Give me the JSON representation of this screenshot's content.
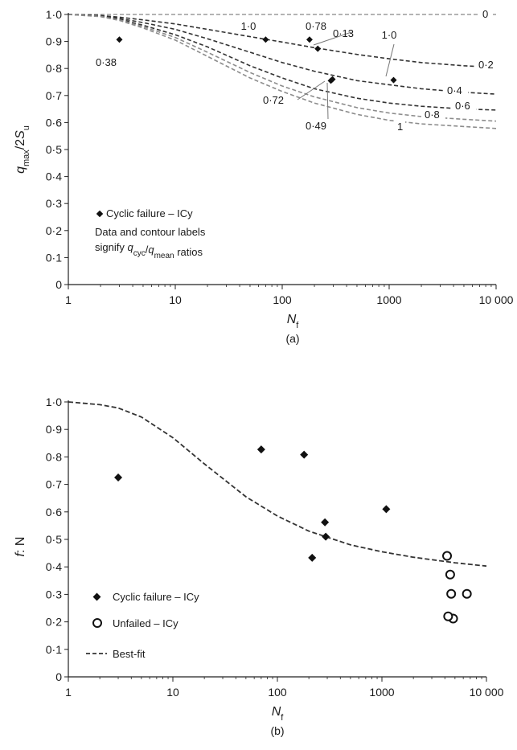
{
  "chart_data": [
    {
      "type": "line",
      "panel_label": "(a)",
      "ylabel": "q_max/2S_u",
      "xlabel": "N_f",
      "x_scale": "log",
      "xlim": [
        1,
        10000
      ],
      "ylim": [
        0,
        1.0
      ],
      "x_ticks": [
        1,
        10,
        100,
        1000,
        10000
      ],
      "x_tick_labels": [
        "1",
        "10",
        "100",
        "1000",
        "10 000"
      ],
      "y_ticks": [
        0,
        0.1,
        0.2,
        0.3,
        0.4,
        0.5,
        0.6,
        0.7,
        0.8,
        0.9,
        1.0
      ],
      "y_tick_labels": [
        "0",
        "0·1",
        "0·2",
        "0·3",
        "0·4",
        "0·5",
        "0·6",
        "0·7",
        "0·8",
        "0·9",
        "1·0"
      ],
      "grid": false,
      "contours": [
        {
          "label": "0",
          "color": "#9a9a9a",
          "x": [
            1,
            2,
            3,
            5,
            10,
            20,
            50,
            100,
            200,
            500,
            1000,
            2000,
            5000,
            10000
          ],
          "y": [
            1.0,
            1.0,
            1.0,
            1.0,
            1.0,
            1.0,
            1.0,
            1.0,
            1.0,
            1.0,
            1.0,
            1.0,
            1.0,
            1.0
          ]
        },
        {
          "label": "0·2",
          "color": "#333333",
          "x": [
            1,
            2,
            3,
            5,
            10,
            20,
            50,
            100,
            200,
            500,
            1000,
            2000,
            5000,
            10000
          ],
          "y": [
            1.0,
            0.996,
            0.99,
            0.98,
            0.965,
            0.945,
            0.918,
            0.898,
            0.877,
            0.852,
            0.836,
            0.822,
            0.81,
            0.804
          ]
        },
        {
          "label": "0·4",
          "color": "#333333",
          "x": [
            1,
            2,
            3,
            5,
            10,
            20,
            50,
            100,
            200,
            500,
            1000,
            2000,
            5000,
            10000
          ],
          "y": [
            1.0,
            0.995,
            0.985,
            0.97,
            0.945,
            0.91,
            0.86,
            0.822,
            0.79,
            0.755,
            0.74,
            0.725,
            0.712,
            0.705
          ]
        },
        {
          "label": "0·6",
          "color": "#333333",
          "x": [
            1,
            2,
            3,
            5,
            10,
            20,
            50,
            100,
            200,
            500,
            1000,
            2000,
            5000,
            10000
          ],
          "y": [
            1.0,
            0.994,
            0.982,
            0.96,
            0.925,
            0.88,
            0.81,
            0.765,
            0.725,
            0.69,
            0.672,
            0.66,
            0.65,
            0.646
          ]
        },
        {
          "label": "0·8",
          "color": "#8c8c8c",
          "x": [
            1,
            2,
            3,
            5,
            10,
            20,
            50,
            100,
            200,
            500,
            1000,
            2000,
            5000,
            10000
          ],
          "y": [
            1.0,
            0.993,
            0.98,
            0.955,
            0.915,
            0.86,
            0.785,
            0.735,
            0.695,
            0.655,
            0.635,
            0.622,
            0.612,
            0.605
          ]
        },
        {
          "label": "1",
          "color": "#8c8c8c",
          "x": [
            1,
            2,
            3,
            5,
            10,
            20,
            50,
            100,
            200,
            500,
            1000,
            2000,
            5000,
            10000
          ],
          "y": [
            1.0,
            0.992,
            0.978,
            0.95,
            0.905,
            0.845,
            0.765,
            0.715,
            0.672,
            0.63,
            0.608,
            0.595,
            0.585,
            0.578
          ]
        }
      ],
      "points": [
        {
          "x": 3,
          "y": 0.907,
          "label": "0·38"
        },
        {
          "x": 70,
          "y": 0.907,
          "label": "1·0"
        },
        {
          "x": 180,
          "y": 0.907,
          "label": "0·78"
        },
        {
          "x": 215,
          "y": 0.873,
          "label": "0·13"
        },
        {
          "x": 285,
          "y": 0.755,
          "label": "0·72"
        },
        {
          "x": 295,
          "y": 0.76,
          "label": "0·49"
        },
        {
          "x": 1100,
          "y": 0.757,
          "label": "1·0"
        }
      ],
      "legend": {
        "position": "bottom-left",
        "marker_label": "Cyclic failure – ICy",
        "note_line1": "Data and contour labels",
        "note_line2_prefix": "signify ",
        "note_q1": "q",
        "note_q1_sub": "cyc",
        "note_slash": "/",
        "note_q2": "q",
        "note_q2_sub": "mean",
        "note_suffix": " ratios"
      }
    },
    {
      "type": "scatter",
      "panel_label": "(b)",
      "ylabel": "f: N",
      "xlabel": "N_f",
      "x_scale": "log",
      "xlim": [
        1,
        10000
      ],
      "ylim": [
        0,
        1.0
      ],
      "x_ticks": [
        1,
        10,
        100,
        1000,
        10000
      ],
      "x_tick_labels": [
        "1",
        "10",
        "100",
        "1000",
        "10 000"
      ],
      "y_ticks": [
        0,
        0.1,
        0.2,
        0.3,
        0.4,
        0.5,
        0.6,
        0.7,
        0.8,
        0.9,
        1.0
      ],
      "y_tick_labels": [
        "0",
        "0·1",
        "0·2",
        "0·3",
        "0·4",
        "0·5",
        "0·6",
        "0·7",
        "0·8",
        "0·9",
        "1·0"
      ],
      "grid": false,
      "series": [
        {
          "name": "Cyclic failure – ICy",
          "marker": "diamond",
          "x": [
            3,
            70,
            180,
            215,
            285,
            290,
            1100
          ],
          "y": [
            0.725,
            0.827,
            0.808,
            0.433,
            0.562,
            0.51,
            0.61
          ]
        },
        {
          "name": "Unfailed – ICy",
          "marker": "open-circle",
          "x": [
            4200,
            4500,
            4600,
            4800,
            6500,
            4300
          ],
          "y": [
            0.44,
            0.372,
            0.302,
            0.212,
            0.302,
            0.22
          ]
        },
        {
          "name": "Best-fit",
          "marker": "none",
          "line": "dashed",
          "x": [
            1,
            2,
            3,
            5,
            10,
            20,
            50,
            100,
            200,
            500,
            1000,
            2000,
            5000,
            10000
          ],
          "y": [
            1.0,
            0.99,
            0.978,
            0.945,
            0.87,
            0.775,
            0.655,
            0.585,
            0.53,
            0.48,
            0.455,
            0.435,
            0.415,
            0.403
          ]
        }
      ],
      "legend": {
        "position": "bottom-left"
      }
    }
  ]
}
